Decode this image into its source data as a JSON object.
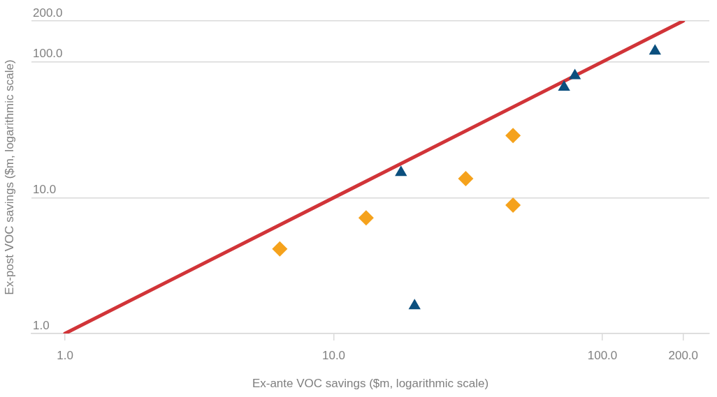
{
  "chart_data": {
    "type": "scatter",
    "xlabel": "Ex-ante VOC savings ($m, logarithmic scale)",
    "ylabel": "Ex-post VOC savings ($m, logarithmic scale)",
    "log": "xy",
    "grid": "y",
    "xlim": [
      0.75,
      250
    ],
    "ylim": [
      1,
      200
    ],
    "xticks": [
      {
        "value": 1,
        "label": "1.0"
      },
      {
        "value": 10,
        "label": "10.0"
      },
      {
        "value": 100,
        "label": "100.0"
      },
      {
        "value": 200,
        "label": "200.0"
      }
    ],
    "yticks": [
      {
        "value": 1,
        "label": "1.0"
      },
      {
        "value": 10,
        "label": "10.0"
      },
      {
        "value": 100,
        "label": "100.0"
      },
      {
        "value": 200,
        "label": "200.0"
      }
    ],
    "series": [
      {
        "type": "line",
        "color": "#d13438",
        "marker": "none",
        "x": [
          1,
          200
        ],
        "values": [
          1,
          200
        ]
      },
      {
        "type": "scatter",
        "color": "#f5a21c",
        "marker": "diamond",
        "x": [
          6.3,
          13.2,
          31,
          46.5,
          46.5
        ],
        "values": [
          4.2,
          7.1,
          13.8,
          28.7,
          8.8
        ]
      },
      {
        "type": "scatter",
        "color": "#0b4f7e",
        "marker": "triangle",
        "x": [
          17.8,
          20,
          72,
          79,
          157
        ],
        "values": [
          15.3,
          1.6,
          65,
          79,
          120
        ]
      }
    ]
  }
}
